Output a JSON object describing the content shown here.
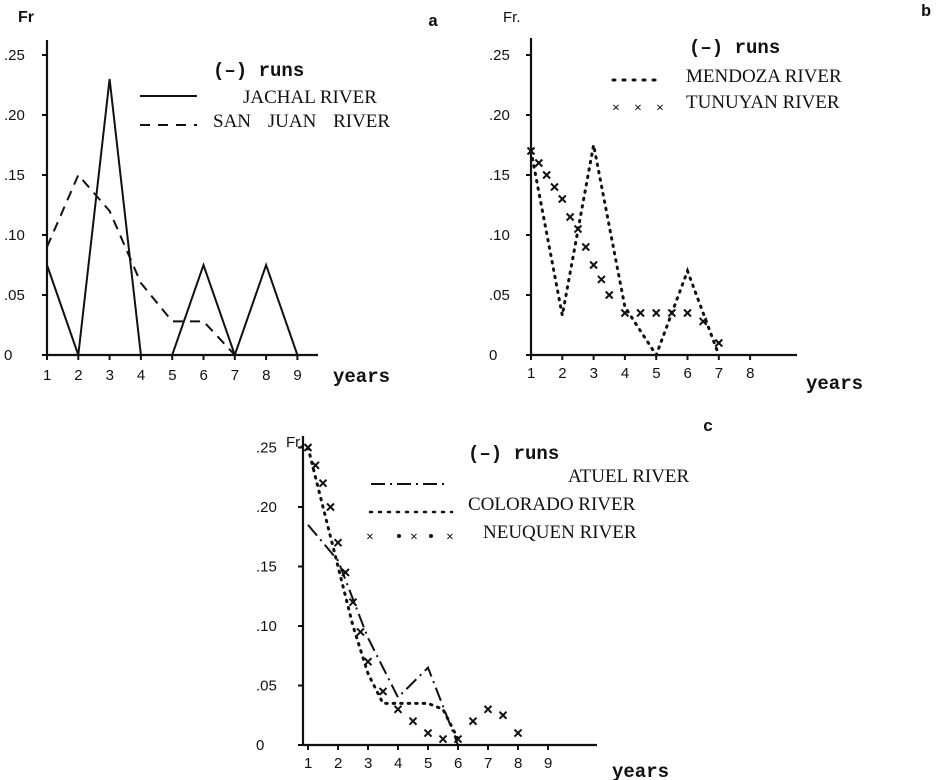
{
  "chart_data": [
    {
      "panel_label": "a",
      "type": "line",
      "ylabel": "Fr",
      "xlabel": "years",
      "legend_title": "(–) runs",
      "ylim": [
        0,
        0.25
      ],
      "y_ticks": [
        ".25",
        ".20",
        ".15",
        ".10",
        ".05",
        "0"
      ],
      "x_ticks": [
        "1",
        "2",
        "3",
        "4",
        "5",
        "6",
        "7",
        "8",
        "9"
      ],
      "series": [
        {
          "name": "JACHAL RIVER",
          "style": "solid",
          "x": [
            1,
            2,
            3,
            4,
            5,
            6,
            7,
            8,
            9
          ],
          "y": [
            0.075,
            0.0,
            0.23,
            0.0,
            0.0,
            0.075,
            0.0,
            0.075,
            0.0
          ]
        },
        {
          "name": "SAN JUAN RIVER",
          "style": "dashed",
          "x": [
            1,
            2,
            3,
            4,
            5,
            6,
            7
          ],
          "y": [
            0.09,
            0.15,
            0.12,
            0.06,
            0.028,
            0.028,
            0.0
          ]
        }
      ]
    },
    {
      "panel_label": "b",
      "type": "line",
      "ylabel": "Fr.",
      "xlabel": "years",
      "legend_title": "(–) runs",
      "ylim": [
        0,
        0.25
      ],
      "y_ticks": [
        ".25",
        ".20",
        ".15",
        ".10",
        ".05",
        "0"
      ],
      "x_ticks": [
        "1",
        "2",
        "3",
        "4",
        "5",
        "6",
        "7",
        "8"
      ],
      "series": [
        {
          "name": "MENDOZA RIVER",
          "style": "dotted",
          "x": [
            1,
            2,
            3,
            4,
            5,
            6,
            7
          ],
          "y": [
            0.17,
            0.033,
            0.175,
            0.04,
            0.0,
            0.07,
            0.0
          ]
        },
        {
          "name": "TUNUYAN RIVER",
          "style": "x-markers",
          "x": [
            1,
            1.25,
            1.5,
            1.75,
            2,
            2.25,
            2.5,
            2.75,
            3,
            3.25,
            3.5,
            4,
            4.5,
            5,
            5.5,
            6,
            6.5,
            7
          ],
          "y": [
            0.17,
            0.16,
            0.15,
            0.14,
            0.13,
            0.115,
            0.105,
            0.09,
            0.075,
            0.063,
            0.05,
            0.035,
            0.035,
            0.035,
            0.035,
            0.035,
            0.028,
            0.01
          ]
        }
      ]
    },
    {
      "panel_label": "c",
      "type": "line",
      "ylabel": "Fr.",
      "xlabel": "years",
      "legend_title": "(–) runs",
      "ylim": [
        0,
        0.25
      ],
      "y_ticks": [
        ".25",
        ".20",
        ".15",
        ".10",
        ".05",
        "0"
      ],
      "x_ticks": [
        "1",
        "2",
        "3",
        "4",
        "5",
        "6",
        "7",
        "8",
        "9"
      ],
      "series": [
        {
          "name": "ATUEL RIVER",
          "style": "dash-dot",
          "x": [
            1,
            2,
            3,
            4,
            5,
            6
          ],
          "y": [
            0.185,
            0.155,
            0.09,
            0.04,
            0.065,
            0.0
          ]
        },
        {
          "name": "COLORADO RIVER",
          "style": "dotted",
          "x": [
            1,
            1.5,
            2,
            2.5,
            3,
            3.5,
            4,
            4.5,
            5,
            5.5,
            6
          ],
          "y": [
            0.25,
            0.2,
            0.15,
            0.1,
            0.06,
            0.035,
            0.035,
            0.035,
            0.035,
            0.03,
            0.005
          ]
        },
        {
          "name": "NEUQUEN RIVER",
          "style": "x-markers",
          "x": [
            1,
            1.25,
            1.5,
            1.75,
            2,
            2.25,
            2.5,
            2.75,
            3,
            3.5,
            4,
            4.5,
            5,
            5.5,
            6,
            6.5,
            7,
            7.5,
            8
          ],
          "y": [
            0.25,
            0.235,
            0.22,
            0.2,
            0.17,
            0.145,
            0.12,
            0.095,
            0.07,
            0.045,
            0.03,
            0.02,
            0.01,
            0.005,
            0.005,
            0.02,
            0.03,
            0.025,
            0.01
          ]
        }
      ]
    }
  ]
}
